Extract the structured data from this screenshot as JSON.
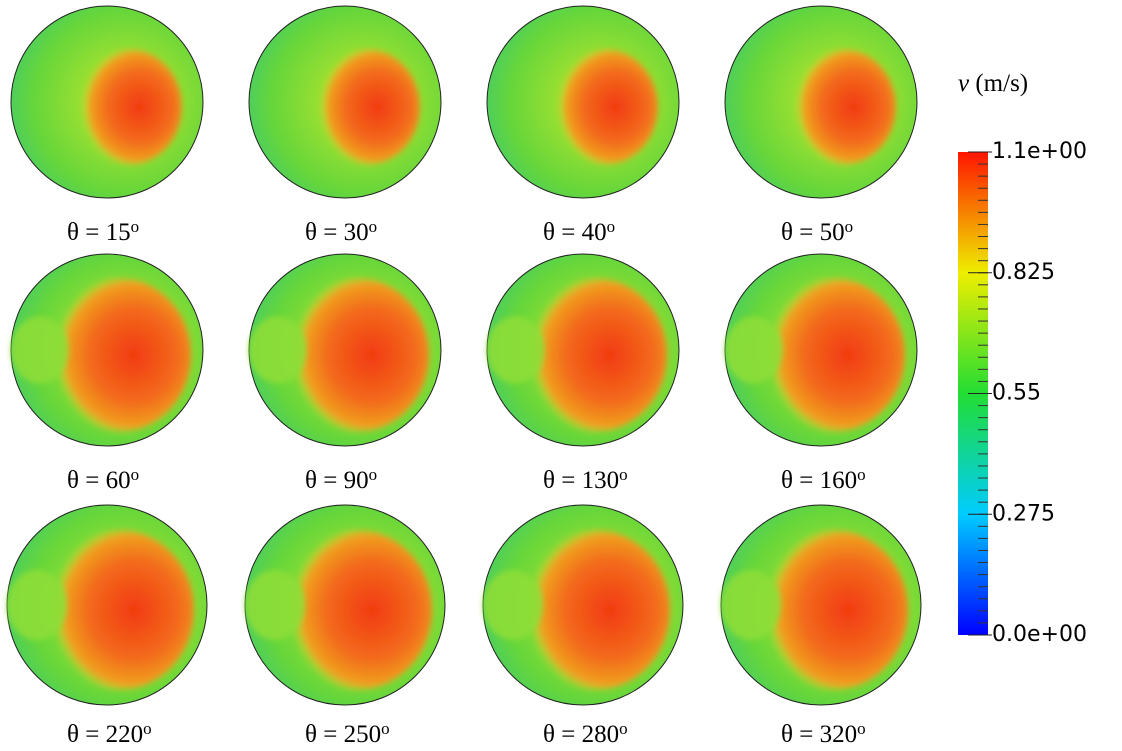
{
  "panels": [
    {
      "theta": "θ = 15"
    },
    {
      "theta": "θ = 30"
    },
    {
      "theta": "θ = 40"
    },
    {
      "theta": "θ = 50"
    },
    {
      "theta": "θ = 60"
    },
    {
      "theta": "θ = 90"
    },
    {
      "theta": "θ = 130"
    },
    {
      "theta": "θ = 160"
    },
    {
      "theta": "θ = 220"
    },
    {
      "theta": "θ = 250"
    },
    {
      "theta": "θ = 280"
    },
    {
      "theta": "θ = 320"
    }
  ],
  "degree_mark": "o",
  "colorbar": {
    "symbol": "v",
    "unit": "(m/s)",
    "range": [
      0,
      1.1
    ],
    "ticks": [
      {
        "value": 1.1,
        "label": "1.1e+00"
      },
      0.825,
      0.55,
      0.275,
      {
        "value": 0,
        "label": "0.0e+00"
      }
    ]
  }
}
